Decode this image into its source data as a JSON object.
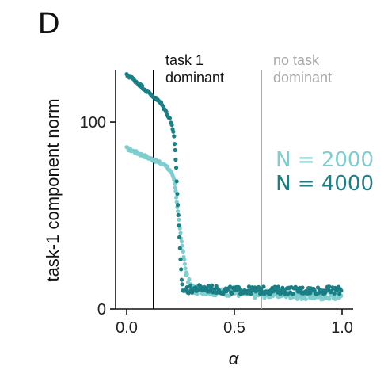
{
  "panel_label": "D",
  "chart_data": {
    "type": "scatter",
    "xlabel": "α",
    "ylabel": "task-1 component norm",
    "xlim": [
      -0.05,
      1.05
    ],
    "ylim": [
      0,
      128
    ],
    "xticks": [
      0.0,
      0.5,
      1.0
    ],
    "xtick_labels": [
      "0.0",
      "0.5",
      "1.0"
    ],
    "yticks": [
      0,
      100
    ],
    "ytick_labels": [
      "0",
      "100"
    ],
    "grid": false,
    "legend_position": "right",
    "annotations": [
      {
        "x": 0.125,
        "lines": [
          "task 1",
          "dominant"
        ],
        "line_color": "#000000",
        "text_color": "#111111"
      },
      {
        "x": 0.625,
        "lines": [
          "no task",
          "dominant"
        ],
        "line_color": "#aaaaaa",
        "text_color": "#aaaaaa"
      }
    ],
    "series": [
      {
        "name": "N = 2000",
        "color": "#7fcdcf",
        "points": [
          [
            0.0,
            86
          ],
          [
            0.02,
            85
          ],
          [
            0.04,
            84
          ],
          [
            0.06,
            83
          ],
          [
            0.08,
            82
          ],
          [
            0.1,
            81
          ],
          [
            0.12,
            80
          ],
          [
            0.14,
            79
          ],
          [
            0.16,
            78
          ],
          [
            0.18,
            77
          ],
          [
            0.19,
            76
          ],
          [
            0.2,
            74
          ],
          [
            0.21,
            72
          ],
          [
            0.22,
            69
          ],
          [
            0.225,
            65
          ],
          [
            0.23,
            60
          ],
          [
            0.235,
            55
          ],
          [
            0.24,
            50
          ],
          [
            0.245,
            45
          ],
          [
            0.25,
            40
          ],
          [
            0.255,
            36
          ],
          [
            0.26,
            32
          ],
          [
            0.265,
            28
          ],
          [
            0.27,
            24
          ],
          [
            0.275,
            20
          ],
          [
            0.28,
            17
          ],
          [
            0.29,
            14
          ],
          [
            0.3,
            12
          ],
          [
            0.32,
            10
          ],
          [
            0.36,
            10
          ],
          [
            0.42,
            9
          ],
          [
            0.5,
            9
          ],
          [
            0.58,
            8
          ],
          [
            0.66,
            8
          ],
          [
            0.74,
            8
          ],
          [
            0.82,
            7
          ],
          [
            0.9,
            7
          ],
          [
            0.96,
            7
          ],
          [
            1.0,
            7
          ]
        ]
      },
      {
        "name": "N = 4000",
        "color": "#1b7f86",
        "points": [
          [
            0.0,
            125
          ],
          [
            0.02,
            124
          ],
          [
            0.04,
            122
          ],
          [
            0.06,
            120
          ],
          [
            0.08,
            118
          ],
          [
            0.1,
            116
          ],
          [
            0.12,
            114
          ],
          [
            0.14,
            112
          ],
          [
            0.16,
            110
          ],
          [
            0.18,
            106
          ],
          [
            0.2,
            102
          ],
          [
            0.21,
            98
          ],
          [
            0.22,
            93
          ],
          [
            0.225,
            85
          ],
          [
            0.23,
            75
          ],
          [
            0.235,
            62
          ],
          [
            0.24,
            50
          ],
          [
            0.245,
            38
          ],
          [
            0.25,
            26
          ],
          [
            0.255,
            16
          ],
          [
            0.26,
            10
          ],
          [
            0.28,
            10
          ],
          [
            0.32,
            11
          ],
          [
            0.38,
            11
          ],
          [
            0.44,
            10
          ],
          [
            0.5,
            10
          ],
          [
            0.58,
            10
          ],
          [
            0.66,
            10
          ],
          [
            0.74,
            10
          ],
          [
            0.82,
            10
          ],
          [
            0.9,
            10
          ],
          [
            0.96,
            10
          ],
          [
            1.0,
            10
          ]
        ]
      }
    ]
  }
}
